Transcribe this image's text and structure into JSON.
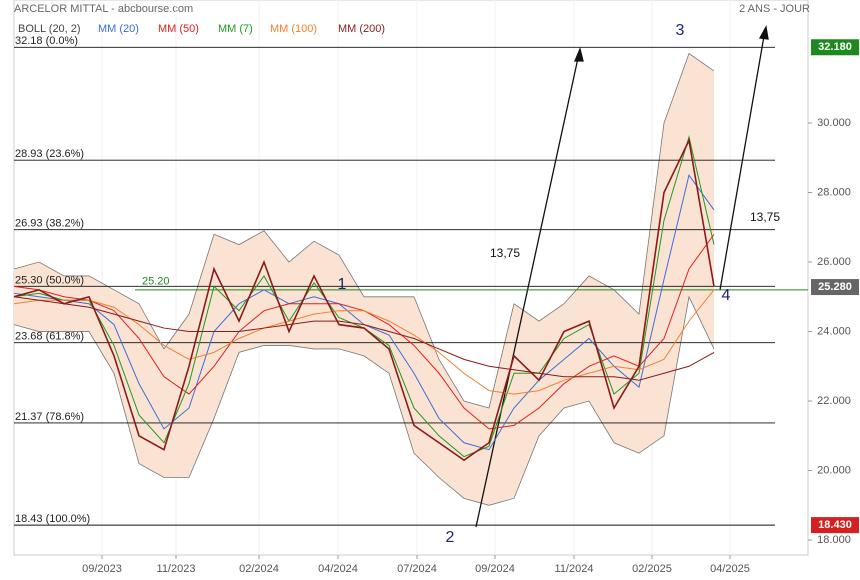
{
  "chart_data": {
    "type": "line",
    "title": "ARCELOR MITTAL - abcbourse.com",
    "subtitle": "2 ANS - JOUR",
    "x": [
      0,
      1,
      2,
      3,
      4,
      5,
      6,
      7,
      8,
      9,
      10,
      11,
      12,
      13,
      14,
      15,
      16,
      17,
      18,
      19,
      20,
      21,
      22,
      23,
      24,
      25,
      26,
      27,
      28
    ],
    "values": [
      25.0,
      25.2,
      24.8,
      25.0,
      23.3,
      21.0,
      20.6,
      23.0,
      25.8,
      24.3,
      26.0,
      24.0,
      25.6,
      24.2,
      24.1,
      23.5,
      21.3,
      20.8,
      20.3,
      20.8,
      23.3,
      22.6,
      24.0,
      24.3,
      21.8,
      23.0,
      28.0,
      29.5,
      25.3
    ],
    "color": "#8b1a1a",
    "band": {
      "name": "BOLL (20, 2)",
      "color": "#777777",
      "fill": "#fbe3d3",
      "upper": [
        25.8,
        26.0,
        25.6,
        25.6,
        25.2,
        24.8,
        23.5,
        24.5,
        26.8,
        26.5,
        26.9,
        26.0,
        26.6,
        26.2,
        25.0,
        25.0,
        25.0,
        23.2,
        22.0,
        21.8,
        24.8,
        24.3,
        24.8,
        25.6,
        25.2,
        24.5,
        30.0,
        32.0,
        31.5
      ],
      "lower": [
        24.2,
        24.0,
        24.0,
        24.0,
        22.8,
        20.2,
        19.8,
        19.8,
        21.5,
        23.4,
        23.6,
        23.6,
        23.5,
        23.5,
        23.3,
        22.8,
        20.5,
        19.8,
        19.2,
        19.0,
        19.2,
        21.0,
        21.8,
        22.0,
        20.8,
        20.5,
        21.0,
        25.0,
        23.5
      ]
    },
    "series": [
      {
        "name": "MM (20)",
        "color": "#3b6fd6",
        "values": [
          25.1,
          25.0,
          24.9,
          24.8,
          24.2,
          22.5,
          21.2,
          21.8,
          24.0,
          24.8,
          25.2,
          24.8,
          25.0,
          24.8,
          24.2,
          23.9,
          22.8,
          21.5,
          20.8,
          20.6,
          21.8,
          22.6,
          23.2,
          23.8,
          23.0,
          22.4,
          25.5,
          28.5,
          27.5
        ]
      },
      {
        "name": "MM (50)",
        "color": "#e02020",
        "values": [
          25.3,
          25.2,
          25.0,
          24.9,
          24.6,
          23.8,
          22.7,
          22.2,
          23.0,
          24.0,
          24.6,
          24.8,
          24.8,
          24.8,
          24.6,
          24.2,
          23.6,
          22.8,
          21.8,
          21.2,
          21.3,
          21.8,
          22.5,
          23.0,
          23.3,
          23.0,
          23.8,
          25.8,
          26.8
        ]
      },
      {
        "name": "MM (7)",
        "color": "#1e9a1e",
        "values": [
          25.0,
          25.1,
          24.9,
          24.9,
          23.6,
          21.6,
          20.8,
          22.5,
          25.3,
          24.6,
          25.6,
          24.3,
          25.4,
          24.4,
          24.1,
          23.6,
          21.8,
          21.0,
          20.4,
          20.7,
          22.8,
          22.8,
          23.8,
          24.2,
          22.2,
          22.8,
          27.2,
          29.6,
          26.5
        ]
      },
      {
        "name": "MM (100)",
        "color": "#f08030",
        "values": [
          24.8,
          24.9,
          24.9,
          24.9,
          24.7,
          24.2,
          23.6,
          23.2,
          23.4,
          23.8,
          24.1,
          24.3,
          24.5,
          24.6,
          24.6,
          24.3,
          23.9,
          23.4,
          22.8,
          22.3,
          22.2,
          22.3,
          22.6,
          22.8,
          23.0,
          22.9,
          23.2,
          24.3,
          25.2
        ]
      },
      {
        "name": "MM (200)",
        "color": "#8b1a1a",
        "values": [
          25.0,
          24.9,
          24.8,
          24.7,
          24.5,
          24.3,
          24.1,
          24.0,
          24.0,
          24.0,
          24.1,
          24.2,
          24.3,
          24.3,
          24.2,
          24.0,
          23.8,
          23.5,
          23.2,
          23.0,
          22.9,
          22.8,
          22.7,
          22.7,
          22.7,
          22.6,
          22.8,
          23.0,
          23.4
        ]
      }
    ],
    "xlim": [
      0,
      31.76
    ],
    "xticks": [
      {
        "value": 3.52,
        "label": "09/2023"
      },
      {
        "value": 6.48,
        "label": "11/2023"
      },
      {
        "value": 9.8,
        "label": "02/2024"
      },
      {
        "value": 12.96,
        "label": "04/2024"
      },
      {
        "value": 16.12,
        "label": "07/2024"
      },
      {
        "value": 19.24,
        "label": "09/2024"
      },
      {
        "value": 22.4,
        "label": "11/2024"
      },
      {
        "value": 25.52,
        "label": "02/2025"
      },
      {
        "value": 28.64,
        "label": "04/2025"
      }
    ],
    "ylim": [
      17.57,
      33.54
    ],
    "yticks": [
      {
        "value": 18,
        "label": "18.000"
      },
      {
        "value": 20,
        "label": "20.000"
      },
      {
        "value": 22,
        "label": "22.000"
      },
      {
        "value": 24,
        "label": "24.000"
      },
      {
        "value": 26,
        "label": "26.000"
      },
      {
        "value": 28,
        "label": "28.000"
      },
      {
        "value": 30,
        "label": "30.000"
      }
    ],
    "fib_levels": [
      {
        "value": 32.18,
        "label": "32.18  (0.0%)"
      },
      {
        "value": 28.93,
        "label": "28.93  (23.6%)"
      },
      {
        "value": 26.93,
        "label": "26.93  (38.2%)"
      },
      {
        "value": 25.3,
        "label": "25.30  (50.0%)"
      },
      {
        "value": 23.68,
        "label": "23.68  (61.8%)"
      },
      {
        "value": 21.37,
        "label": "21.37  (78.6%)"
      },
      {
        "value": 18.43,
        "label": "18.43  (100.0%)"
      }
    ],
    "support": {
      "value": 25.2,
      "label": "25.20",
      "color": "#1e8a1e"
    },
    "price_tags": [
      {
        "value": 32.18,
        "label": "32.180",
        "color": "#1e8a1e"
      },
      {
        "value": 25.28,
        "label": "25.280",
        "color": "#666666"
      },
      {
        "value": 18.43,
        "label": "18.430",
        "color": "#d42020"
      }
    ],
    "annotations": [
      "1",
      "2",
      "3",
      "4",
      "13,75",
      "13,75"
    ],
    "grid": true
  }
}
